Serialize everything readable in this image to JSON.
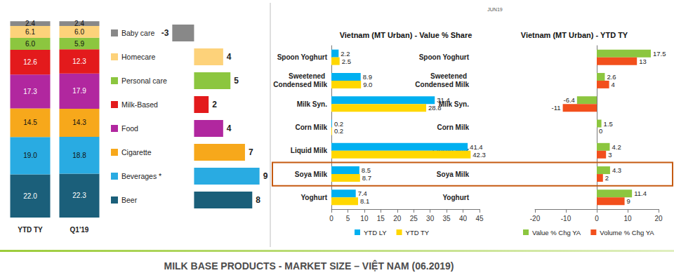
{
  "header_note": "JUN19",
  "footer": "MILK BASE PRODUCTS - MARKET SIZE – VIỆT NAM (06.2019)",
  "chart_data": [
    {
      "type": "bar",
      "stacked": true,
      "categories": [
        "YTD TY",
        "Q1'19"
      ],
      "ylim": [
        0,
        100
      ],
      "tick_labels": "x",
      "data_labels": true,
      "legend": "right",
      "series": [
        {
          "name": "Beer",
          "color": "#1b5f7a",
          "values": [
            22.0,
            22.3
          ],
          "value_labels": [
            "22.0",
            "22.3"
          ],
          "change": 8
        },
        {
          "name": "Beverages *",
          "color": "#29abe2",
          "values": [
            19.0,
            18.8
          ],
          "value_labels": [
            "19.0",
            "18.8"
          ],
          "change": 9
        },
        {
          "name": "Cigarette",
          "color": "#f7a81b",
          "values": [
            14.5,
            14.3
          ],
          "value_labels": [
            "14.5",
            "14.3"
          ],
          "change": 7
        },
        {
          "name": "Food",
          "color": "#b1279f",
          "values": [
            17.3,
            17.9
          ],
          "value_labels": [
            "17.3",
            "17.9"
          ],
          "change": 4
        },
        {
          "name": "Milk-Based",
          "color": "#e31a1c",
          "values": [
            12.6,
            12.3
          ],
          "value_labels": [
            "12.6",
            "12.3"
          ],
          "change": 2
        },
        {
          "name": "Personal care",
          "color": "#8cc63f",
          "values": [
            6.0,
            5.9
          ],
          "value_labels": [
            "6.0",
            "5.9"
          ],
          "change": 5
        },
        {
          "name": "Homecare",
          "color": "#fdd27a",
          "values": [
            6.1,
            6.0
          ],
          "value_labels": [
            "6.1",
            "6.0"
          ],
          "change": 4
        },
        {
          "name": "Baby care",
          "color": "#888888",
          "values": [
            2.4,
            2.4
          ],
          "value_labels": [
            "2.4",
            "2.4"
          ],
          "change": -3
        }
      ]
    },
    {
      "type": "bar",
      "orientation": "horizontal",
      "title": "Vietnam (MT Urban) - Value % Share",
      "categories": [
        "Spoon Yoghurt",
        "Sweetened Condensed Milk",
        "Milk Syn.",
        "Corn Milk",
        "Liquid Milk",
        "Soya Milk",
        "Yoghurt"
      ],
      "xlim": [
        0,
        45
      ],
      "xticks": [
        0,
        5,
        10,
        15,
        20,
        25,
        30,
        35,
        40,
        45
      ],
      "grid": false,
      "data_labels": true,
      "legend": "bottom",
      "series": [
        {
          "name": "YTD LY",
          "color": "#00b0f0",
          "values": [
            2.2,
            8.9,
            31.4,
            0.2,
            41.4,
            8.5,
            7.4
          ],
          "value_labels": [
            "2.2",
            "8.9",
            "31.4",
            "0.2",
            "41.4",
            "8.5",
            "7.4"
          ]
        },
        {
          "name": "YTD TY",
          "color": "#ffd700",
          "values": [
            2.5,
            9.0,
            28.8,
            0.2,
            42.3,
            8.7,
            8.1
          ],
          "value_labels": [
            "2.5",
            "9.0",
            "28.8",
            "0.2",
            "42.3",
            "8.7",
            "8.1"
          ]
        }
      ]
    },
    {
      "type": "bar",
      "orientation": "horizontal",
      "title": "Vietnam (MT Urban) - YTD TY",
      "categories": [
        "Spoon Yoghurt",
        "Sweetened Condensed Milk",
        "Milk Syn.",
        "Corn Milk",
        "Liquid Milk",
        "Soya Milk",
        "Yoghurt"
      ],
      "xlim": [
        -20,
        20
      ],
      "xticks": [
        -20,
        -10,
        0,
        10,
        20
      ],
      "grid": false,
      "data_labels": true,
      "legend": "bottom",
      "series": [
        {
          "name": "Value % Chg YA",
          "color": "#8cc63f",
          "values": [
            17.5,
            2.6,
            -6.4,
            1.5,
            4.2,
            4.3,
            11.4
          ]
        },
        {
          "name": "Volume % Chg YA",
          "color": "#f24f1c",
          "values": [
            13,
            4,
            -11,
            0,
            3,
            2,
            9
          ]
        }
      ]
    }
  ]
}
